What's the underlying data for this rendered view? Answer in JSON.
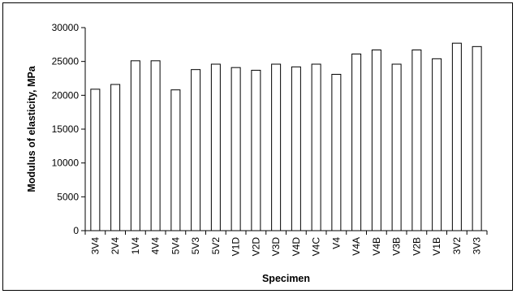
{
  "chart_data": {
    "type": "bar",
    "title": "",
    "xlabel": "Specimen",
    "ylabel": "Modulus of elasticity, MPa",
    "ylim": [
      0,
      30000
    ],
    "yticks": [
      0,
      5000,
      10000,
      15000,
      20000,
      25000,
      30000
    ],
    "ytick_labels": [
      "0",
      "5000",
      "10000",
      "15000",
      "20000",
      "25000",
      "30000"
    ],
    "grid": false,
    "legend": "none",
    "bar_fill": "#ffffff",
    "bar_stroke": "#000000",
    "categories": [
      "3V4",
      "2V4",
      "1V4",
      "4V4",
      "5V4",
      "5V3",
      "5V2",
      "V1D",
      "V2D",
      "V3D",
      "V4D",
      "V4C",
      "V4",
      "V4A",
      "V4B",
      "V3B",
      "V2B",
      "V1B",
      "3V2",
      "3V3"
    ],
    "values": [
      20900,
      21600,
      25100,
      25100,
      20800,
      23800,
      24600,
      24100,
      23700,
      24600,
      24200,
      24600,
      23100,
      26100,
      26700,
      24600,
      26700,
      25400,
      27700,
      27200
    ]
  }
}
